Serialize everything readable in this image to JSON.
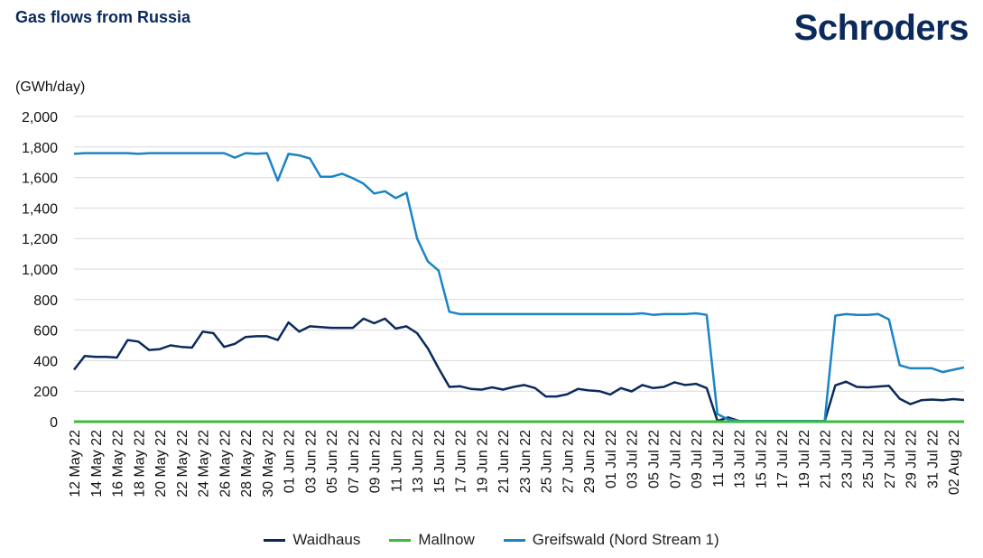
{
  "header": {
    "title": "Gas flows from Russia",
    "logo_text": "Schroders"
  },
  "chart_data": {
    "type": "line",
    "title": "Gas flows from Russia",
    "ylabel": "(GWh/day)",
    "xlabel": "",
    "ylim": [
      0,
      2000
    ],
    "yticks": [
      0,
      200,
      400,
      600,
      800,
      1000,
      1200,
      1400,
      1600,
      1800,
      2000
    ],
    "ytick_labels": [
      "0",
      "200",
      "400",
      "600",
      "800",
      "1,000",
      "1,200",
      "1,400",
      "1,600",
      "1,800",
      "2,000"
    ],
    "grid": "horizontal",
    "legend": "bottom",
    "x_start": "2022-05-12",
    "x_tick_labels": [
      "12 May 22",
      "14 May 22",
      "16 May 22",
      "18 May 22",
      "20 May 22",
      "22 May 22",
      "24 May 22",
      "26 May 22",
      "28 May 22",
      "30 May 22",
      "01 Jun 22",
      "03 Jun 22",
      "05 Jun 22",
      "07 Jun 22",
      "09 Jun 22",
      "11 Jun 22",
      "13 Jun 22",
      "15 Jun 22",
      "17 Jun 22",
      "19 Jun 22",
      "21 Jun 22",
      "23 Jun 22",
      "25 Jun 22",
      "27 Jun 22",
      "29 Jun 22",
      "01 Jul 22",
      "03 Jul 22",
      "05 Jul 22",
      "07 Jul 22",
      "09 Jul 22",
      "11 Jul 22",
      "13 Jul 22",
      "15 Jul 22",
      "17 Jul 22",
      "19 Jul 22",
      "21 Jul 22",
      "23 Jul 22",
      "25 Jul 22",
      "27 Jul 22",
      "29 Jul 22",
      "31 Jul 22",
      "02 Aug 22"
    ],
    "series": [
      {
        "name": "Waidhaus",
        "color": "#0b2a5b",
        "values": [
          340,
          430,
          425,
          425,
          420,
          535,
          525,
          470,
          475,
          500,
          490,
          485,
          590,
          580,
          490,
          510,
          555,
          560,
          560,
          535,
          650,
          590,
          625,
          620,
          615,
          615,
          615,
          675,
          645,
          675,
          610,
          625,
          580,
          480,
          350,
          228,
          232,
          215,
          210,
          225,
          210,
          228,
          240,
          220,
          165,
          165,
          180,
          215,
          205,
          200,
          178,
          220,
          198,
          240,
          220,
          228,
          258,
          240,
          248,
          220,
          5,
          28,
          5,
          3,
          3,
          3,
          3,
          3,
          3,
          3,
          3,
          238,
          262,
          228,
          225,
          230,
          235,
          150,
          115,
          140,
          145,
          140,
          148,
          142
        ]
      },
      {
        "name": "Mallnow",
        "color": "#3dbb3a",
        "values": [
          0,
          0,
          0,
          0,
          0,
          0,
          0,
          0,
          0,
          0,
          0,
          0,
          0,
          0,
          0,
          0,
          0,
          0,
          0,
          0,
          0,
          0,
          0,
          0,
          0,
          0,
          0,
          0,
          0,
          0,
          0,
          0,
          0,
          0,
          0,
          0,
          0,
          0,
          0,
          0,
          0,
          0,
          0,
          0,
          0,
          0,
          0,
          0,
          0,
          0,
          0,
          0,
          0,
          0,
          0,
          0,
          0,
          0,
          0,
          0,
          0,
          0,
          0,
          0,
          0,
          0,
          0,
          0,
          0,
          0,
          0,
          0,
          0,
          0,
          0,
          0,
          0,
          0,
          0,
          0,
          0,
          0,
          0,
          0
        ]
      },
      {
        "name": "Greifswald (Nord Stream 1)",
        "color": "#1b84c4",
        "values": [
          1755,
          1760,
          1760,
          1760,
          1760,
          1760,
          1755,
          1760,
          1760,
          1760,
          1760,
          1760,
          1760,
          1760,
          1760,
          1730,
          1760,
          1755,
          1760,
          1580,
          1755,
          1745,
          1725,
          1605,
          1605,
          1625,
          1595,
          1560,
          1495,
          1510,
          1465,
          1500,
          1200,
          1050,
          990,
          720,
          705,
          705,
          705,
          705,
          705,
          705,
          705,
          705,
          705,
          705,
          705,
          705,
          705,
          705,
          705,
          705,
          705,
          710,
          700,
          705,
          705,
          705,
          710,
          700,
          50,
          15,
          5,
          5,
          5,
          5,
          5,
          5,
          5,
          5,
          5,
          695,
          705,
          700,
          700,
          705,
          670,
          370,
          350,
          350,
          350,
          325,
          340,
          355
        ]
      }
    ]
  }
}
